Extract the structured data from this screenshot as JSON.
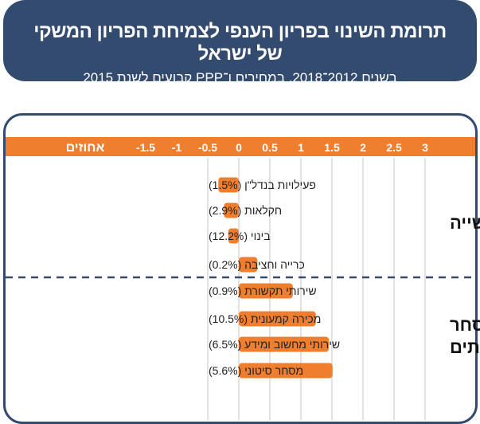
{
  "header": {
    "title": "תרומת השינוי בפריון הענפי לצמיחת הפריון המשקי של ישראל",
    "subtitle": "בשנים 2012־2018, במחירים ו־PPP קבועים לשנת 2015"
  },
  "colors": {
    "bar": "#ef7f2f",
    "header_bg": "#344b70",
    "axis_strip": "#ef7f2f",
    "grid": "#d9d9d9",
    "divider": "#344b70"
  },
  "chart_data": {
    "type": "bar",
    "orientation": "horizontal",
    "title": "תרומת השינוי בפריון הענפי לצמיחת הפריון המשקי של ישראל",
    "subtitle": "בשנים 2012־2018, במחירים ו־PPP קבועים לשנת 2015",
    "xlabel": "אחוזים",
    "xlim": [
      -1.5,
      3
    ],
    "ticks": [
      "-1.5",
      "-1",
      "-0.5",
      "0",
      "0.5",
      "1",
      "1.5",
      "2",
      "2.5",
      "3"
    ],
    "tick_values": [
      -1.5,
      -1,
      -0.5,
      0,
      0.5,
      1,
      1.5,
      2,
      2.5,
      3
    ],
    "grid": true,
    "categories": [
      "פעילויות בנדל\"ן (1.5%)",
      "חקלאות (2.9%)",
      "בינוי (12.2%)",
      "כרייה וחציבה (0.2%)",
      "שירותי תקשורת (0.9%)",
      "מכירה קמעונית (10.5%)",
      "שירותי מחשוב ומידע (6.5%)",
      "מסחר סיטוני (5.6%)"
    ],
    "values": [
      -0.33,
      -0.24,
      -0.17,
      0.3,
      0.87,
      1.24,
      1.45,
      1.51
    ],
    "groups": [
      {
        "label": "תעשייה",
        "count": 4
      },
      {
        "label": "מסחר ושירותים",
        "lines": [
          "מסחר",
          "ושירותים"
        ],
        "count": 4
      }
    ]
  }
}
